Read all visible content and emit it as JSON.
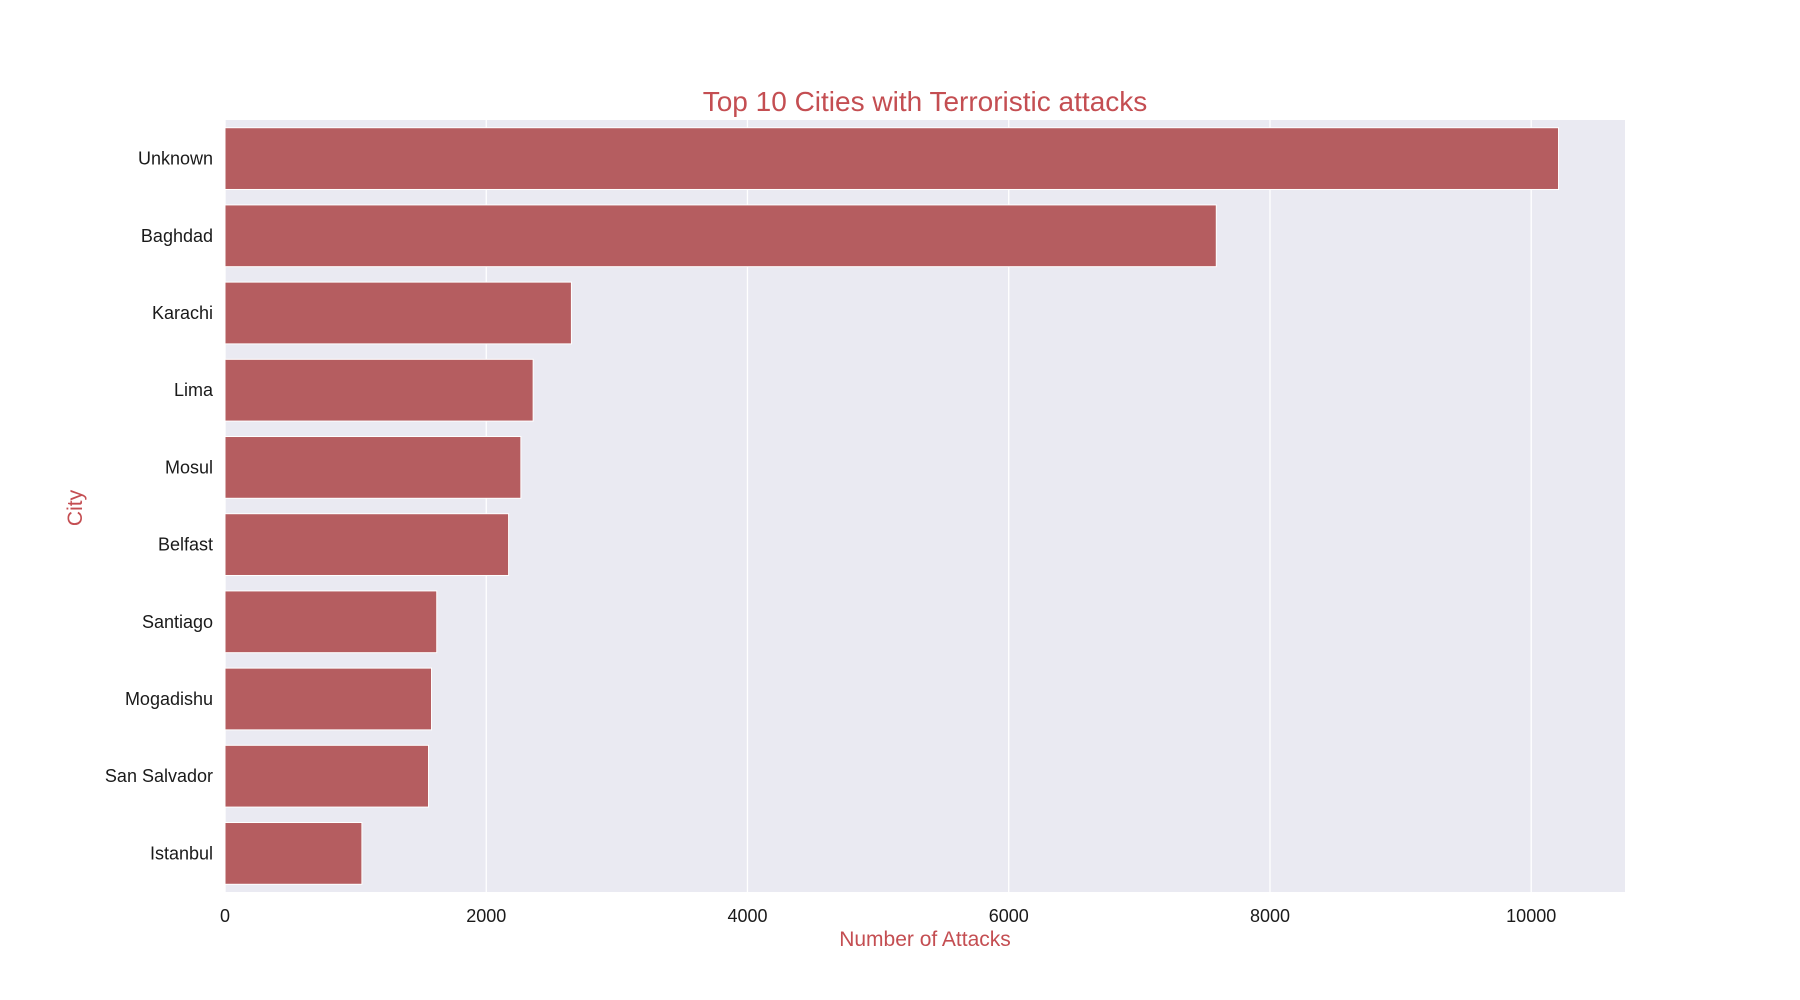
{
  "chart_data": {
    "type": "bar",
    "orientation": "horizontal",
    "title": "Top 10 Cities with Terroristic attacks",
    "xlabel": "Number of Attacks",
    "ylabel": "City",
    "categories": [
      "Unknown",
      "Baghdad",
      "Karachi",
      "Lima",
      "Mosul",
      "Belfast",
      "Santiago",
      "Mogadishu",
      "San Salvador",
      "Istanbul"
    ],
    "values": [
      10209,
      7589,
      2652,
      2359,
      2265,
      2171,
      1621,
      1581,
      1558,
      1048
    ],
    "xlim": [
      0,
      10718
    ],
    "xticks": [
      0,
      2000,
      4000,
      6000,
      8000,
      10000
    ],
    "grid": true,
    "colors": {
      "bar": "#b55d60",
      "bar_edge": "#ffffff",
      "plot_background": "#eaeaf2",
      "grid": "#ffffff",
      "accent_text": "#c44e52"
    }
  }
}
